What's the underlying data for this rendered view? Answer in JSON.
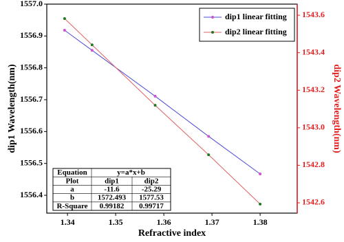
{
  "chart_data": {
    "type": "scatter-line",
    "xlabel": "Refractive index",
    "ylabel": "dip1 Wavelength(nm)",
    "y2label": "dip2 Wavelength(nm)",
    "x": [
      1.3394,
      1.3451,
      1.3582,
      1.3693,
      1.38
    ],
    "series": [
      {
        "name": "dip1 linear fitting",
        "color": "#4a4ad8",
        "marker_color": "#d24fd2",
        "values": [
          1556.918,
          1556.855,
          1556.711,
          1556.585,
          1556.467
        ]
      },
      {
        "name": "dip2 linear fitting",
        "color": "#e06060",
        "marker_color": "#1f7a1f",
        "axis": "y2",
        "values": [
          1543.582,
          1543.442,
          1543.12,
          1542.856,
          1542.593
        ]
      }
    ],
    "xlim": [
      1.3357,
      1.3877
    ],
    "xticks": [
      1.34,
      1.35,
      1.36,
      1.37,
      1.38
    ],
    "ylim": [
      1556.344,
      1557.0
    ],
    "yticks": [
      1556.4,
      1556.5,
      1556.6,
      1556.7,
      1556.8,
      1556.9,
      {
        "value": 1557,
        "label": "1557.0"
      }
    ],
    "y2lim": [
      1542.545,
      1543.659
    ],
    "y2ticks": [
      1542.6,
      1542.8,
      {
        "value": 1543,
        "label": "1543.0"
      },
      1543.2,
      1543.4,
      1543.6
    ],
    "y2color": "#e02020",
    "legend": "upper right"
  },
  "table": {
    "rows": [
      [
        "Equation",
        "y=a*x+b"
      ],
      [
        "Plot",
        "dip1",
        "dip2"
      ],
      [
        "a",
        "-11.6",
        "-25.29"
      ],
      [
        "b",
        "1572.493",
        "1577.53"
      ],
      [
        "R-Square",
        "0.99182",
        "0.99717"
      ]
    ]
  }
}
